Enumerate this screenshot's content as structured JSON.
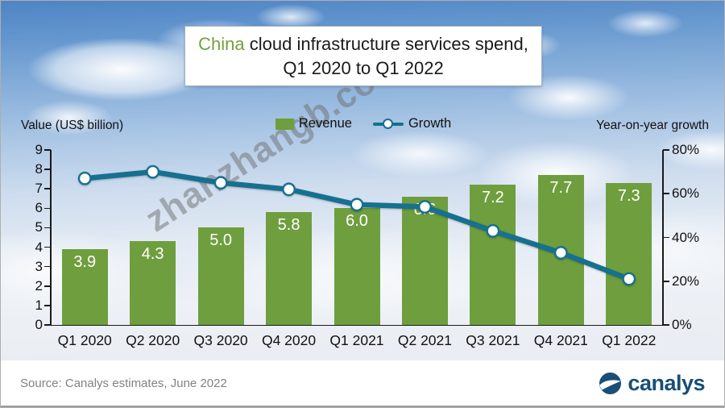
{
  "title": {
    "highlight": "China",
    "line1_rest": " cloud infrastructure services spend,",
    "line2": "Q1 2020 to Q1 2022"
  },
  "legend": {
    "revenue": "Revenue",
    "growth": "Growth"
  },
  "axes": {
    "left": {
      "title": "Value (US$ billion)"
    },
    "right": {
      "title": "Year-on-year growth"
    }
  },
  "footer": {
    "source": "Source: Canalys estimates, June 2022",
    "logo_text": "canalys"
  },
  "watermark": "zhanzhangb.com",
  "colors": {
    "bar_green": "#6f9e3e",
    "line_teal": "#16708f",
    "title_highlight_green": "#77a03c",
    "logo_navy": "#174f77",
    "source_gray": "#808285"
  },
  "chart_data": {
    "type": "bar+line combo",
    "title": "China cloud infrastructure services spend, Q1 2020 to Q1 2022",
    "categories": [
      "Q1 2020",
      "Q2 2020",
      "Q3 2020",
      "Q4 2020",
      "Q1 2021",
      "Q2 2021",
      "Q3 2021",
      "Q4 2021",
      "Q1 2022"
    ],
    "series": [
      {
        "name": "Revenue",
        "type": "bar",
        "unit": "US$ billion",
        "color": "#6f9e3e",
        "values": [
          3.9,
          4.3,
          5.0,
          5.8,
          6.0,
          6.6,
          7.2,
          7.7,
          7.3
        ],
        "labels": [
          "3.9",
          "4.3",
          "5.0",
          "5.8",
          "6.0",
          "6.6",
          "7.2",
          "7.7",
          "7.3"
        ]
      },
      {
        "name": "Growth",
        "type": "line",
        "unit": "percent",
        "color": "#16708f",
        "marker": "white-circle",
        "values": [
          67,
          70,
          65,
          62,
          55,
          54,
          43,
          33,
          21
        ]
      }
    ],
    "left_axis": {
      "title": "Value (US$ billion)",
      "min": 0,
      "max": 9,
      "step": 1,
      "ticks": [
        "0",
        "1",
        "2",
        "3",
        "4",
        "5",
        "6",
        "7",
        "8",
        "9"
      ]
    },
    "right_axis": {
      "title": "Year-on-year growth",
      "min": 0,
      "max": 80,
      "step": 20,
      "ticks": [
        "0%",
        "20%",
        "40%",
        "60%",
        "80%"
      ]
    },
    "grid": false,
    "legend_position": "top-center"
  }
}
